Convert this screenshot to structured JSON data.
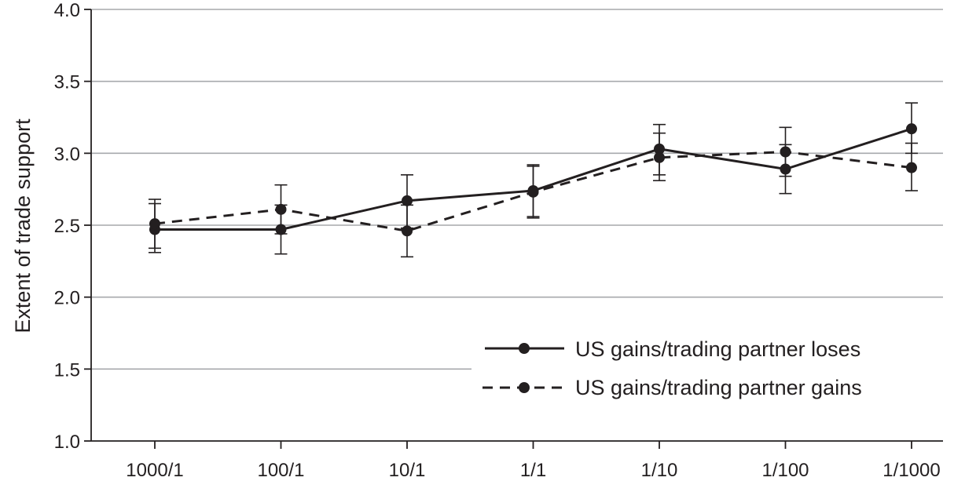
{
  "chart_data": {
    "type": "line",
    "title": "",
    "xlabel": "",
    "ylabel": "Extent of trade support",
    "categories": [
      "1000/1",
      "100/1",
      "10/1",
      "1/1",
      "1/10",
      "1/100",
      "1/1000"
    ],
    "ylim": [
      1.0,
      4.0
    ],
    "yticks": [
      "1.0",
      "1.5",
      "2.0",
      "2.5",
      "3.0",
      "3.5",
      "4.0"
    ],
    "grid": "horizontal",
    "legend_position": "bottom-right",
    "series": [
      {
        "name": "US gains/trading partner loses",
        "style": "solid",
        "values": [
          2.47,
          2.47,
          2.67,
          2.74,
          3.03,
          2.89,
          3.17
        ],
        "error_low": [
          2.31,
          2.3,
          2.48,
          2.56,
          2.85,
          2.72,
          3.0
        ],
        "error_high": [
          2.65,
          2.64,
          2.85,
          2.91,
          3.2,
          3.06,
          3.35
        ]
      },
      {
        "name": "US gains/trading partner gains",
        "style": "dashed",
        "values": [
          2.51,
          2.61,
          2.46,
          2.73,
          2.97,
          3.01,
          2.9
        ],
        "error_low": [
          2.34,
          2.44,
          2.28,
          2.55,
          2.81,
          2.84,
          2.74
        ],
        "error_high": [
          2.68,
          2.78,
          2.64,
          2.92,
          3.14,
          3.18,
          3.07
        ]
      }
    ],
    "colors": {
      "ink": "#231f20",
      "grid": "#a7a9ac"
    }
  }
}
